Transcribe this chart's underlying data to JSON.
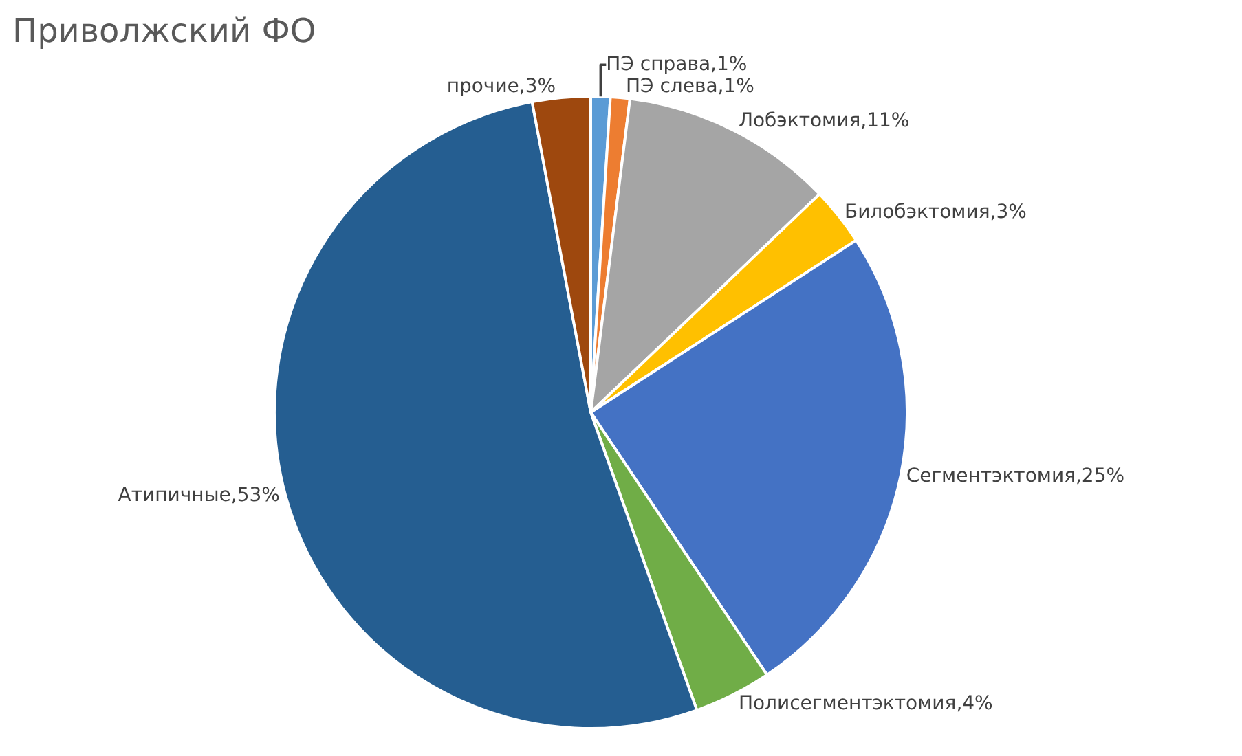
{
  "chart_data": {
    "type": "pie",
    "title": "Приволжский ФО",
    "categories": [
      "ПЭ справа",
      "ПЭ слева",
      "Лобэктомия",
      "Билобэктомия",
      "Сегментэктомия",
      "Полисегментэктомия",
      "Атипичные",
      "прочие"
    ],
    "values": [
      1,
      1,
      11,
      3,
      25,
      4,
      53,
      3
    ],
    "value_labels": [
      "1%",
      "1%",
      "11%",
      "3%",
      "25%",
      "4%",
      "53%",
      "3%"
    ],
    "colors": [
      "#5b9bd5",
      "#ed7d31",
      "#a5a5a5",
      "#ffc000",
      "#4472c4",
      "#70ad47",
      "#255e91",
      "#9e480e"
    ]
  }
}
